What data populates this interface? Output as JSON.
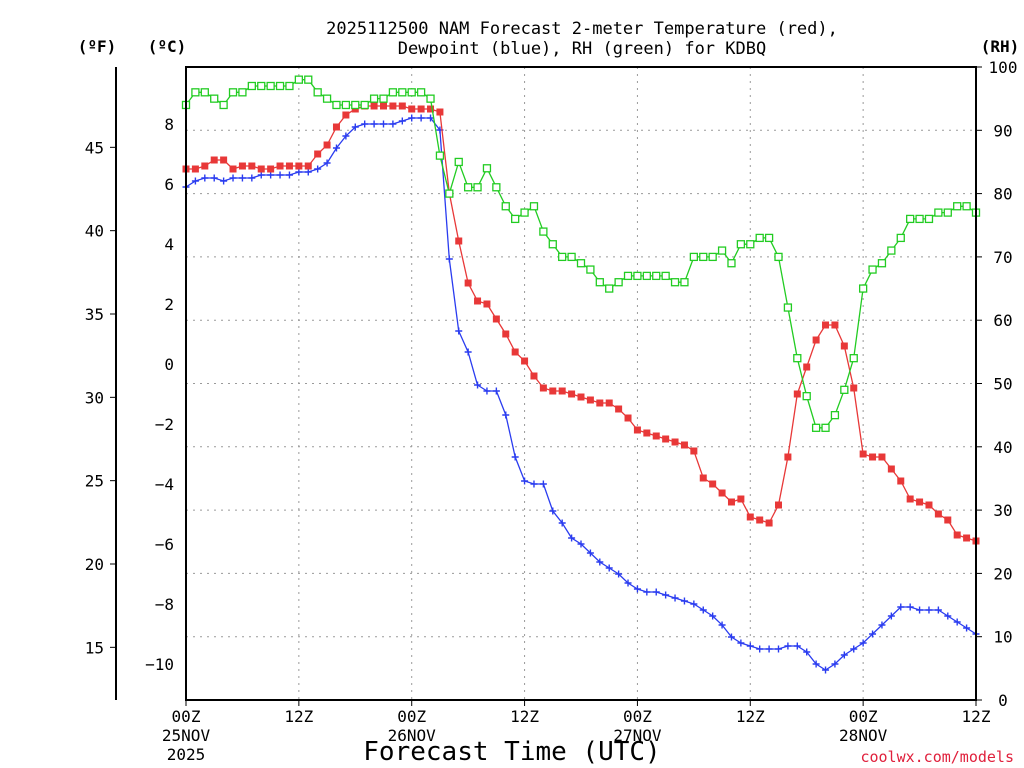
{
  "chart_data": {
    "type": "line",
    "title": "2025112500 NAM Forecast 2-meter Temperature (red),",
    "subtitle": "Dewpoint (blue), RH (green) for KDBQ",
    "xlabel": "Forecast Time (UTC)",
    "credit": "coolwx.com/models",
    "units": {
      "fahrenheit": "(ºF)",
      "celsius": "(ºC)",
      "rh": "(RH)"
    },
    "colors": {
      "temperature": "#e83838",
      "dewpoint": "#2a3cf0",
      "rh": "#22cc22"
    },
    "x_range_hours": [
      0,
      84
    ],
    "x_ticks": [
      {
        "hour": 0,
        "label": "00Z",
        "day": "25NOV",
        "year": "2025"
      },
      {
        "hour": 12,
        "label": "12Z",
        "day": "",
        "year": ""
      },
      {
        "hour": 24,
        "label": "00Z",
        "day": "26NOV",
        "year": ""
      },
      {
        "hour": 36,
        "label": "12Z",
        "day": "",
        "year": ""
      },
      {
        "hour": 48,
        "label": "00Z",
        "day": "27NOV",
        "year": ""
      },
      {
        "hour": 60,
        "label": "12Z",
        "day": "",
        "year": ""
      },
      {
        "hour": 72,
        "label": "00Z",
        "day": "28NOV",
        "year": ""
      },
      {
        "hour": 84,
        "label": "12Z",
        "day": "",
        "year": ""
      }
    ],
    "y_left_celsius": {
      "range": [
        -11.2,
        9.9
      ],
      "ticks": [
        8,
        6,
        4,
        2,
        0,
        -2,
        -4,
        -6,
        -8,
        -10
      ],
      "labels": [
        "8",
        "6",
        "4",
        "2",
        "0",
        "−2",
        "−4",
        "−6",
        "−8",
        "−10"
      ]
    },
    "y_left_fahrenheit": {
      "ticks": [
        45,
        40,
        35,
        30,
        25,
        20,
        15
      ],
      "labels": [
        "45",
        "40",
        "35",
        "30",
        "25",
        "20",
        "15"
      ]
    },
    "y_right_rh": {
      "range": [
        0,
        100
      ],
      "ticks": [
        100,
        90,
        80,
        70,
        60,
        50,
        40,
        30,
        20,
        10,
        0
      ],
      "labels": [
        "100",
        "90",
        "80",
        "70",
        "60",
        "50",
        "40",
        "30",
        "20",
        "10",
        "0"
      ]
    },
    "series": [
      {
        "name": "Temperature",
        "unit": "C",
        "points": [
          [
            0,
            6.5
          ],
          [
            1,
            6.5
          ],
          [
            2,
            6.6
          ],
          [
            3,
            6.8
          ],
          [
            4,
            6.8
          ],
          [
            5,
            6.5
          ],
          [
            6,
            6.6
          ],
          [
            7,
            6.6
          ],
          [
            8,
            6.5
          ],
          [
            9,
            6.5
          ],
          [
            10,
            6.6
          ],
          [
            11,
            6.6
          ],
          [
            12,
            6.6
          ],
          [
            13,
            6.6
          ],
          [
            14,
            7.0
          ],
          [
            15,
            7.3
          ],
          [
            16,
            7.9
          ],
          [
            17,
            8.3
          ],
          [
            18,
            8.5
          ],
          [
            19,
            8.6
          ],
          [
            20,
            8.6
          ],
          [
            21,
            8.6
          ],
          [
            22,
            8.6
          ],
          [
            23,
            8.6
          ],
          [
            24,
            8.5
          ],
          [
            25,
            8.5
          ],
          [
            26,
            8.5
          ],
          [
            27,
            8.4
          ],
          [
            28,
            5.7
          ],
          [
            29,
            4.1
          ],
          [
            30,
            2.7
          ],
          [
            31,
            2.1
          ],
          [
            32,
            2.0
          ],
          [
            33,
            1.5
          ],
          [
            34,
            1.0
          ],
          [
            35,
            0.4
          ],
          [
            36,
            0.1
          ],
          [
            37,
            -0.4
          ],
          [
            38,
            -0.8
          ],
          [
            39,
            -0.9
          ],
          [
            40,
            -0.9
          ],
          [
            41,
            -1.0
          ],
          [
            42,
            -1.1
          ],
          [
            43,
            -1.2
          ],
          [
            44,
            -1.3
          ],
          [
            45,
            -1.3
          ],
          [
            46,
            -1.5
          ],
          [
            47,
            -1.8
          ],
          [
            48,
            -2.2
          ],
          [
            49,
            -2.3
          ],
          [
            50,
            -2.4
          ],
          [
            51,
            -2.5
          ],
          [
            52,
            -2.6
          ],
          [
            53,
            -2.7
          ],
          [
            54,
            -2.9
          ],
          [
            55,
            -3.8
          ],
          [
            56,
            -4.0
          ],
          [
            57,
            -4.3
          ],
          [
            58,
            -4.6
          ],
          [
            59,
            -4.5
          ],
          [
            60,
            -5.1
          ],
          [
            61,
            -5.2
          ],
          [
            62,
            -5.3
          ],
          [
            63,
            -4.7
          ],
          [
            64,
            -3.1
          ],
          [
            65,
            -1.0
          ],
          [
            66,
            -0.1
          ],
          [
            67,
            0.8
          ],
          [
            68,
            1.3
          ],
          [
            69,
            1.3
          ],
          [
            70,
            0.6
          ],
          [
            71,
            -0.8
          ],
          [
            72,
            -3.0
          ],
          [
            73,
            -3.1
          ],
          [
            74,
            -3.1
          ],
          [
            75,
            -3.5
          ],
          [
            76,
            -3.9
          ],
          [
            77,
            -4.5
          ],
          [
            78,
            -4.6
          ],
          [
            79,
            -4.7
          ],
          [
            80,
            -5.0
          ],
          [
            81,
            -5.2
          ],
          [
            82,
            -5.7
          ],
          [
            83,
            -5.8
          ],
          [
            84,
            -5.9
          ]
        ]
      },
      {
        "name": "Dewpoint",
        "unit": "C",
        "points": [
          [
            0,
            5.9
          ],
          [
            1,
            6.1
          ],
          [
            2,
            6.2
          ],
          [
            3,
            6.2
          ],
          [
            4,
            6.1
          ],
          [
            5,
            6.2
          ],
          [
            6,
            6.2
          ],
          [
            7,
            6.2
          ],
          [
            8,
            6.3
          ],
          [
            9,
            6.3
          ],
          [
            10,
            6.3
          ],
          [
            11,
            6.3
          ],
          [
            12,
            6.4
          ],
          [
            13,
            6.4
          ],
          [
            14,
            6.5
          ],
          [
            15,
            6.7
          ],
          [
            16,
            7.2
          ],
          [
            17,
            7.6
          ],
          [
            18,
            7.9
          ],
          [
            19,
            8.0
          ],
          [
            20,
            8.0
          ],
          [
            21,
            8.0
          ],
          [
            22,
            8.0
          ],
          [
            23,
            8.1
          ],
          [
            24,
            8.2
          ],
          [
            25,
            8.2
          ],
          [
            26,
            8.2
          ],
          [
            27,
            7.8
          ],
          [
            28,
            3.5
          ],
          [
            29,
            1.1
          ],
          [
            30,
            0.4
          ],
          [
            31,
            -0.7
          ],
          [
            32,
            -0.9
          ],
          [
            33,
            -0.9
          ],
          [
            34,
            -1.7
          ],
          [
            35,
            -3.1
          ],
          [
            36,
            -3.9
          ],
          [
            37,
            -4.0
          ],
          [
            38,
            -4.0
          ],
          [
            39,
            -4.9
          ],
          [
            40,
            -5.3
          ],
          [
            41,
            -5.8
          ],
          [
            42,
            -6.0
          ],
          [
            43,
            -6.3
          ],
          [
            44,
            -6.6
          ],
          [
            45,
            -6.8
          ],
          [
            46,
            -7.0
          ],
          [
            47,
            -7.3
          ],
          [
            48,
            -7.5
          ],
          [
            49,
            -7.6
          ],
          [
            50,
            -7.6
          ],
          [
            51,
            -7.7
          ],
          [
            52,
            -7.8
          ],
          [
            53,
            -7.9
          ],
          [
            54,
            -8.0
          ],
          [
            55,
            -8.2
          ],
          [
            56,
            -8.4
          ],
          [
            57,
            -8.7
          ],
          [
            58,
            -9.1
          ],
          [
            59,
            -9.3
          ],
          [
            60,
            -9.4
          ],
          [
            61,
            -9.5
          ],
          [
            62,
            -9.5
          ],
          [
            63,
            -9.5
          ],
          [
            64,
            -9.4
          ],
          [
            65,
            -9.4
          ],
          [
            66,
            -9.6
          ],
          [
            67,
            -10.0
          ],
          [
            68,
            -10.2
          ],
          [
            69,
            -10.0
          ],
          [
            70,
            -9.7
          ],
          [
            71,
            -9.5
          ],
          [
            72,
            -9.3
          ],
          [
            73,
            -9.0
          ],
          [
            74,
            -8.7
          ],
          [
            75,
            -8.4
          ],
          [
            76,
            -8.1
          ],
          [
            77,
            -8.1
          ],
          [
            78,
            -8.2
          ],
          [
            79,
            -8.2
          ],
          [
            80,
            -8.2
          ],
          [
            81,
            -8.4
          ],
          [
            82,
            -8.6
          ],
          [
            83,
            -8.8
          ],
          [
            84,
            -9.0
          ]
        ]
      },
      {
        "name": "RH",
        "unit": "%",
        "points": [
          [
            0,
            94
          ],
          [
            1,
            96
          ],
          [
            2,
            96
          ],
          [
            3,
            95
          ],
          [
            4,
            94
          ],
          [
            5,
            96
          ],
          [
            6,
            96
          ],
          [
            7,
            97
          ],
          [
            8,
            97
          ],
          [
            9,
            97
          ],
          [
            10,
            97
          ],
          [
            11,
            97
          ],
          [
            12,
            98
          ],
          [
            13,
            98
          ],
          [
            14,
            96
          ],
          [
            15,
            95
          ],
          [
            16,
            94
          ],
          [
            17,
            94
          ],
          [
            18,
            94
          ],
          [
            19,
            94
          ],
          [
            20,
            95
          ],
          [
            21,
            95
          ],
          [
            22,
            96
          ],
          [
            23,
            96
          ],
          [
            24,
            96
          ],
          [
            25,
            96
          ],
          [
            26,
            95
          ],
          [
            27,
            86
          ],
          [
            28,
            80
          ],
          [
            29,
            85
          ],
          [
            30,
            81
          ],
          [
            31,
            81
          ],
          [
            32,
            84
          ],
          [
            33,
            81
          ],
          [
            34,
            78
          ],
          [
            35,
            76
          ],
          [
            36,
            77
          ],
          [
            37,
            78
          ],
          [
            38,
            74
          ],
          [
            39,
            72
          ],
          [
            40,
            70
          ],
          [
            41,
            70
          ],
          [
            42,
            69
          ],
          [
            43,
            68
          ],
          [
            44,
            66
          ],
          [
            45,
            65
          ],
          [
            46,
            66
          ],
          [
            47,
            67
          ],
          [
            48,
            67
          ],
          [
            49,
            67
          ],
          [
            50,
            67
          ],
          [
            51,
            67
          ],
          [
            52,
            66
          ],
          [
            53,
            66
          ],
          [
            54,
            70
          ],
          [
            55,
            70
          ],
          [
            56,
            70
          ],
          [
            57,
            71
          ],
          [
            58,
            69
          ],
          [
            59,
            72
          ],
          [
            60,
            72
          ],
          [
            61,
            73
          ],
          [
            62,
            73
          ],
          [
            63,
            70
          ],
          [
            64,
            62
          ],
          [
            65,
            54
          ],
          [
            66,
            48
          ],
          [
            67,
            43
          ],
          [
            68,
            43
          ],
          [
            69,
            45
          ],
          [
            70,
            49
          ],
          [
            71,
            54
          ],
          [
            72,
            65
          ],
          [
            73,
            68
          ],
          [
            74,
            69
          ],
          [
            75,
            71
          ],
          [
            76,
            73
          ],
          [
            77,
            76
          ],
          [
            78,
            76
          ],
          [
            79,
            76
          ],
          [
            80,
            77
          ],
          [
            81,
            77
          ],
          [
            82,
            78
          ],
          [
            83,
            78
          ],
          [
            84,
            77
          ]
        ]
      }
    ]
  }
}
